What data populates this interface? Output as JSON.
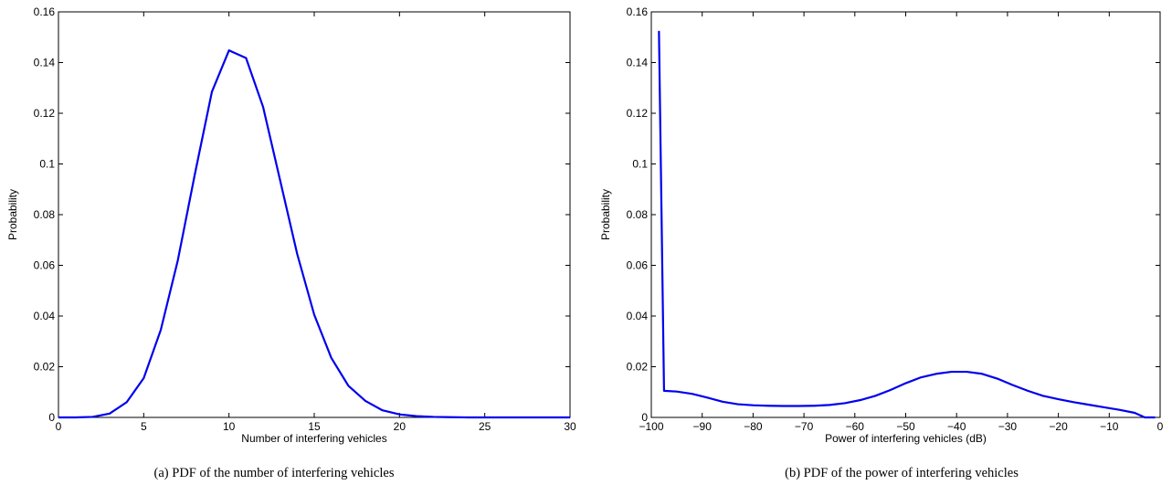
{
  "colors": {
    "line": "#0000ee",
    "axes": "#000000",
    "background": "#ffffff"
  },
  "chart_data": [
    {
      "type": "line",
      "caption": "(a) PDF of the number of interfering vehicles",
      "xlabel": "Number of interfering vehicles",
      "ylabel": "Probability",
      "xlim": [
        0,
        30
      ],
      "ylim": [
        0,
        0.16
      ],
      "xticks": [
        0,
        5,
        10,
        15,
        20,
        25,
        30
      ],
      "xtick_labels": [
        "0",
        "5",
        "10",
        "15",
        "20",
        "25",
        "30"
      ],
      "yticks": [
        0,
        0.02,
        0.04,
        0.06,
        0.08,
        0.1,
        0.12,
        0.14,
        0.16
      ],
      "ytick_labels": [
        "0",
        "0.02",
        "0.04",
        "0.06",
        "0.08",
        "0.1",
        "0.12",
        "0.14",
        "0.16"
      ],
      "grid": false,
      "series": [
        {
          "x": [
            0,
            1,
            2,
            3,
            4,
            5,
            6,
            7,
            8,
            9,
            10,
            11,
            12,
            13,
            14,
            15,
            16,
            17,
            18,
            19,
            20,
            21,
            22,
            23,
            24,
            25,
            26,
            27,
            28,
            29,
            30
          ],
          "y": [
            0,
            0,
            0.0002,
            0.0015,
            0.006,
            0.0155,
            0.0345,
            0.062,
            0.096,
            0.1285,
            0.1448,
            0.1418,
            0.1225,
            0.0935,
            0.0645,
            0.0405,
            0.0235,
            0.0125,
            0.0065,
            0.0028,
            0.0012,
            0.0005,
            0.0002,
            0.0001,
            0,
            0,
            0,
            0,
            0,
            0,
            0
          ]
        }
      ]
    },
    {
      "type": "line",
      "caption": "(b) PDF of the power of interfering vehicles",
      "xlabel": "Power of interfering vehicles (dB)",
      "ylabel": "Probability",
      "xlim": [
        -100,
        0
      ],
      "ylim": [
        0,
        0.16
      ],
      "xticks": [
        -100,
        -90,
        -80,
        -70,
        -60,
        -50,
        -40,
        -30,
        -20,
        -10,
        0
      ],
      "xtick_labels": [
        "−100",
        "−90",
        "−80",
        "−70",
        "−60",
        "−50",
        "−40",
        "−30",
        "−20",
        "−10",
        "0"
      ],
      "yticks": [
        0,
        0.02,
        0.04,
        0.06,
        0.08,
        0.1,
        0.12,
        0.14,
        0.16
      ],
      "ytick_labels": [
        "0",
        "0.02",
        "0.04",
        "0.06",
        "0.08",
        "0.1",
        "0.12",
        "0.14",
        "0.16"
      ],
      "grid": false,
      "series": [
        {
          "x": [
            -98.5,
            -97.5,
            -95,
            -92,
            -89,
            -86,
            -83,
            -80,
            -77,
            -74,
            -71,
            -68,
            -65,
            -62,
            -59,
            -56,
            -53,
            -50,
            -47,
            -44,
            -41,
            -38,
            -35,
            -32,
            -29,
            -26,
            -23,
            -20,
            -17,
            -14,
            -11,
            -8,
            -5,
            -3,
            -1
          ],
          "y": [
            0.1525,
            0.0105,
            0.0102,
            0.0093,
            0.0078,
            0.0062,
            0.0052,
            0.0048,
            0.0046,
            0.0045,
            0.0045,
            0.0046,
            0.0049,
            0.0056,
            0.0068,
            0.0085,
            0.0108,
            0.0135,
            0.0158,
            0.0172,
            0.018,
            0.018,
            0.0172,
            0.0153,
            0.0128,
            0.0105,
            0.0085,
            0.0072,
            0.006,
            0.005,
            0.004,
            0.003,
            0.0018,
            0,
            0
          ]
        }
      ]
    }
  ]
}
